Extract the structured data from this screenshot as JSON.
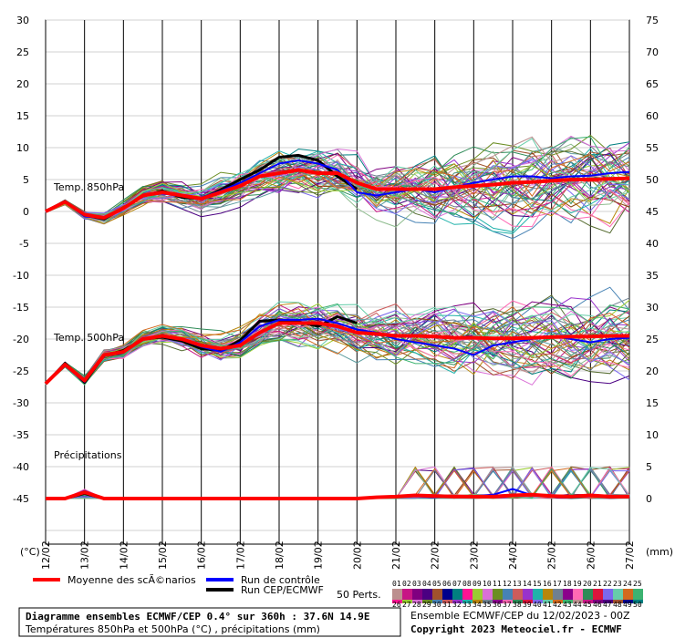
{
  "chart_data": {
    "type": "line",
    "title": "Diagramme ensembles ECMWF/CEP 0.4° sur 360h : 37.6N 14.9E",
    "subtitle": "Températures 850hPa et 500hPa (°C) , précipitations (mm)",
    "run_info": "Ensemble ECMWF/CEP du 12/02/2023 - 00Z",
    "copyright": "Copyright 2023 Meteociel.fr - ECMWF",
    "y_left_unit": "(°C)",
    "y_right_unit": "(mm)",
    "y_left_ticks": [
      30,
      25,
      20,
      15,
      10,
      5,
      0,
      -5,
      -10,
      -15,
      -20,
      -25,
      -30,
      -35,
      -40,
      -45
    ],
    "y_right_ticks": [
      75,
      70,
      65,
      60,
      55,
      50,
      45,
      40,
      35,
      30,
      25,
      20,
      15,
      10,
      5,
      0
    ],
    "ylim_left": [
      -45,
      30
    ],
    "x_ticks": [
      "12/02",
      "13/02",
      "14/02",
      "15/02",
      "16/02",
      "17/02",
      "18/02",
      "19/02",
      "20/02",
      "21/02",
      "22/02",
      "23/02",
      "24/02",
      "25/02",
      "26/02",
      "27/02"
    ],
    "grid": true,
    "panel_labels": {
      "t850": "Temp. 850hPa",
      "t500": "Temp. 500hPa",
      "precip": "Précipitations"
    },
    "legend": {
      "mean_label": "Moyenne des scÃ©narios",
      "control_label": "Run de contrôle",
      "operational_label": "Run CEP/ECMWF",
      "perts_label": "50 Perts.",
      "perts_row1": [
        "01",
        "02",
        "03",
        "04",
        "05",
        "06",
        "07",
        "08",
        "09",
        "10",
        "11",
        "12",
        "13",
        "14",
        "15",
        "16",
        "17",
        "18",
        "19",
        "20",
        "21",
        "22",
        "23",
        "24",
        "25"
      ],
      "perts_row2": [
        "26",
        "27",
        "28",
        "29",
        "30",
        "31",
        "32",
        "33",
        "34",
        "35",
        "36",
        "37",
        "38",
        "39",
        "40",
        "41",
        "42",
        "43",
        "44",
        "45",
        "46",
        "47",
        "48",
        "49",
        "50"
      ]
    },
    "x_days": [
      0,
      0.5,
      1,
      1.5,
      2,
      2.5,
      3,
      3.5,
      4,
      4.5,
      5,
      5.5,
      6,
      6.5,
      7,
      7.5,
      8,
      8.5,
      9,
      9.5,
      10,
      10.5,
      11,
      11.5,
      12,
      12.5,
      13,
      13.5,
      14,
      14.5,
      15
    ],
    "series": [
      {
        "name": "Moyenne des scÃ©narios",
        "color": "#ff0000",
        "width": 4,
        "t850": [
          0,
          1.5,
          -0.5,
          -1,
          0.5,
          2.5,
          3,
          2.5,
          2,
          3,
          4,
          5.5,
          6,
          6.5,
          6,
          6,
          4.5,
          3.5,
          3.5,
          3.5,
          3.5,
          3.8,
          4,
          4.2,
          4.5,
          4.6,
          4.8,
          5,
          5,
          5.1,
          5.2
        ],
        "t500": [
          -27,
          -24,
          -26.5,
          -22.5,
          -22,
          -20,
          -19.5,
          -20,
          -21,
          -21.5,
          -21,
          -19,
          -17.5,
          -17.5,
          -17.5,
          -18,
          -19,
          -19.2,
          -19.5,
          -19.5,
          -19.6,
          -19.8,
          -19.8,
          -19.9,
          -19.9,
          -19.8,
          -19.7,
          -19.6,
          -19.6,
          -19.5,
          -19.5
        ],
        "precip": [
          0,
          0,
          1,
          0,
          0,
          0,
          0,
          0,
          0,
          0,
          0,
          0,
          0,
          0,
          0,
          0,
          0,
          0.2,
          0.3,
          0.5,
          0.4,
          0.3,
          0.3,
          0.3,
          0.5,
          0.6,
          0.4,
          0.3,
          0.5,
          0.3,
          0.3
        ]
      },
      {
        "name": "Run de contrôle",
        "color": "#0000ff",
        "width": 2,
        "t850": [
          0,
          1.4,
          -0.8,
          -1,
          0.4,
          2.6,
          2.8,
          2.4,
          2.2,
          3.2,
          4.5,
          6,
          7.5,
          8,
          7.5,
          6.5,
          3,
          2.5,
          3,
          3.5,
          3,
          3.8,
          4.5,
          5,
          5.5,
          5.5,
          5.2,
          5.5,
          5.6,
          6,
          6.2
        ],
        "t500": [
          -27,
          -24.2,
          -26.7,
          -22.4,
          -22.1,
          -20,
          -19.6,
          -20.1,
          -21.2,
          -22,
          -20.5,
          -18,
          -17,
          -17,
          -16.8,
          -17.5,
          -18.5,
          -19,
          -20,
          -20.5,
          -21,
          -21.5,
          -22.5,
          -21,
          -20.5,
          -20,
          -19.5,
          -20,
          -20.5,
          -20,
          -19.8
        ],
        "precip": [
          0,
          0,
          1.2,
          0,
          0,
          0,
          0,
          0,
          0,
          0,
          0,
          0,
          0,
          0,
          0,
          0,
          0,
          0.1,
          0.2,
          0.4,
          0.2,
          0.3,
          0.4,
          0.6,
          1.5,
          0.5,
          0.3,
          0.2,
          0.4,
          0.3,
          0.2
        ]
      },
      {
        "name": "Run CEP/ECMWF",
        "color": "#000000",
        "width": 3,
        "t850": [
          0,
          1.6,
          -0.6,
          -1.2,
          0.6,
          2.4,
          3.2,
          2.2,
          2,
          3.4,
          5,
          6.5,
          8.5,
          8.8,
          8,
          5.5,
          3.5
        ],
        "t500": [
          -27,
          -23.8,
          -26.8,
          -22.6,
          -21.8,
          -20,
          -19.7,
          -20.3,
          -21.5,
          -21.8,
          -20.2,
          -17.2,
          -17,
          -17.3,
          -18,
          -16.5,
          -17.5
        ],
        "precip": [
          0,
          0,
          0.8,
          0,
          0,
          0,
          0,
          0,
          0,
          0,
          0,
          0,
          0,
          0,
          0,
          0,
          0
        ]
      }
    ]
  }
}
